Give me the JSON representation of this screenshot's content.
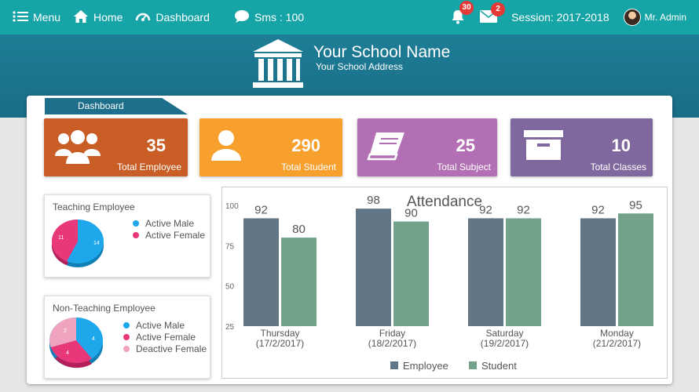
{
  "nav": {
    "menu_label": "Menu",
    "home_label": "Home",
    "dashboard_label": "Dashboard",
    "sms_label": "Sms : 100",
    "notifications_count": "30",
    "messages_count": "2",
    "session_label": "Session: 2017-2018",
    "user_label": "Mr. Admin"
  },
  "header": {
    "school_name": "Your School Name",
    "school_address": "Your School Address"
  },
  "dashboard_tab": "Dashboard",
  "stats": [
    {
      "value": "35",
      "label": "Total Employee",
      "icon": "users-icon",
      "color": "#c85e25"
    },
    {
      "value": "290",
      "label": "Total Student",
      "icon": "user-icon",
      "color": "#f7a02e"
    },
    {
      "value": "25",
      "label": "Total Subject",
      "icon": "book-icon",
      "color": "#b36fb4"
    },
    {
      "value": "10",
      "label": "Total Classes",
      "icon": "archive-box-icon",
      "color": "#7f689d"
    }
  ],
  "teaching_pie": {
    "title": "Teaching Employee",
    "legend": [
      {
        "label": "Active Male",
        "color": "#1ea7ea"
      },
      {
        "label": "Active Female",
        "color": "#e8387a"
      }
    ],
    "slice_labels": [
      "14",
      "11"
    ],
    "values": [
      14,
      11
    ]
  },
  "non_teaching_pie": {
    "title": "Non-Teaching Employee",
    "legend": [
      {
        "label": "Active Male",
        "color": "#1ea7ea"
      },
      {
        "label": "Active Female",
        "color": "#e8387a"
      },
      {
        "label": "Deactive Female",
        "color": "#f0a3bf"
      }
    ],
    "slice_labels": [
      "4",
      "4",
      "2"
    ],
    "values": [
      4,
      4,
      2
    ]
  },
  "chart_data": {
    "type": "bar",
    "title": "Attendance",
    "categories": [
      [
        "Thursday",
        "(17/2/2017)"
      ],
      [
        "Friday",
        "(18/2/2017)"
      ],
      [
        "Saturday",
        "(19/2/2017)"
      ],
      [
        "Monday",
        "(21/2/2017)"
      ]
    ],
    "series": [
      {
        "name": "Employee",
        "values": [
          92,
          98,
          92,
          92
        ],
        "color": "#627686"
      },
      {
        "name": "Student",
        "values": [
          80,
          90,
          92,
          95
        ],
        "color": "#72a28a"
      }
    ],
    "yticks": [
      "100",
      "75",
      "50",
      "25"
    ],
    "ylim": [
      25,
      100
    ],
    "legend_position": "bottom"
  }
}
